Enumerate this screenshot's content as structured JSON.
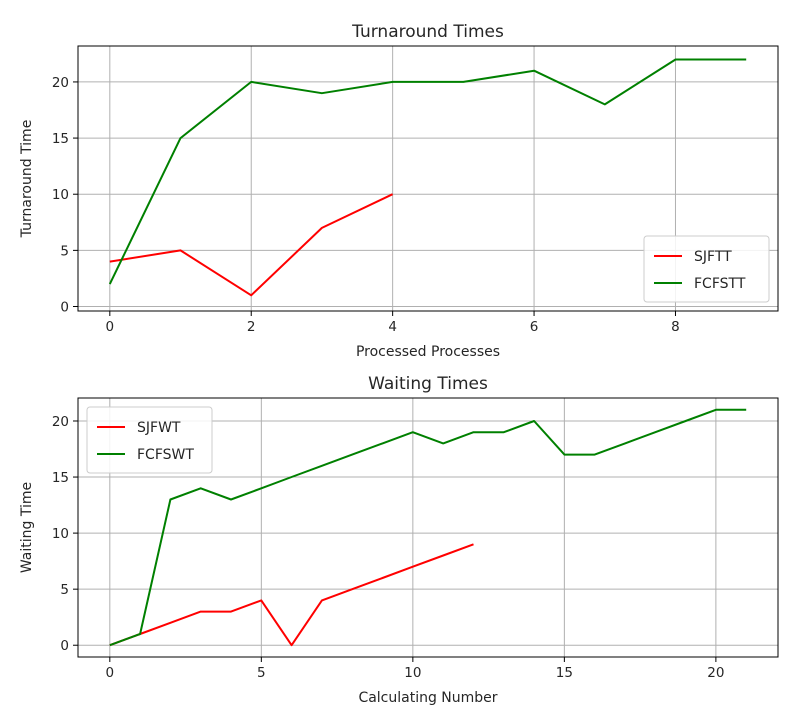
{
  "chart_data": [
    {
      "type": "line",
      "title": "Turnaround Times",
      "xlabel": "Processed Processes",
      "ylabel": "Turnaround Time",
      "xlim": [
        -0.45,
        9.45
      ],
      "ylim": [
        -0.4,
        23.2
      ],
      "xticks": [
        0,
        2,
        4,
        6,
        8
      ],
      "yticks": [
        0,
        5,
        10,
        15,
        20
      ],
      "grid": true,
      "legend": "lower-right",
      "series": [
        {
          "name": "SJFTT",
          "color": "#ff0000",
          "x": [
            0,
            1,
            2,
            3,
            4
          ],
          "y": [
            4,
            5,
            1,
            7,
            10
          ]
        },
        {
          "name": "FCFSTT",
          "color": "#008000",
          "x": [
            0,
            1,
            2,
            3,
            4,
            5,
            6,
            7,
            8,
            9
          ],
          "y": [
            2,
            15,
            20,
            19,
            20,
            20,
            21,
            18,
            22,
            22
          ]
        }
      ]
    },
    {
      "type": "line",
      "title": "Waiting Times",
      "xlabel": "Calculating Number",
      "ylabel": "Waiting Time",
      "xlim": [
        -1.05,
        22.05
      ],
      "ylim": [
        -1.05,
        22.05
      ],
      "xticks": [
        0,
        5,
        10,
        15,
        20
      ],
      "yticks": [
        0,
        5,
        10,
        15,
        20
      ],
      "grid": true,
      "legend": "upper-left",
      "series": [
        {
          "name": "SJFWT",
          "color": "#ff0000",
          "x": [
            0,
            1,
            2,
            3,
            4,
            5,
            6,
            7,
            8,
            9,
            10,
            11,
            12
          ],
          "y": [
            0,
            1,
            2,
            3,
            3,
            4,
            0,
            4,
            5,
            6,
            7,
            8,
            9
          ]
        },
        {
          "name": "FCFSWT",
          "color": "#008000",
          "x": [
            0,
            1,
            2,
            3,
            4,
            5,
            6,
            7,
            8,
            9,
            10,
            11,
            12,
            13,
            14,
            15,
            16,
            17,
            18,
            19,
            20,
            21
          ],
          "y": [
            0,
            1,
            13,
            14,
            13,
            14,
            15,
            16,
            17,
            18,
            19,
            18,
            19,
            19,
            20,
            17,
            17,
            18,
            19,
            20,
            21,
            21
          ]
        }
      ]
    }
  ]
}
